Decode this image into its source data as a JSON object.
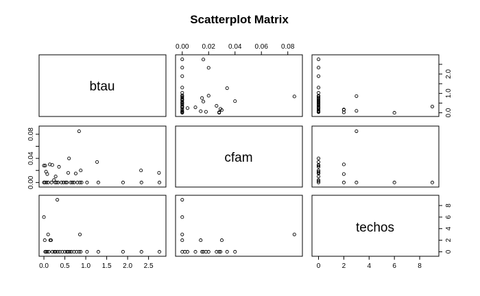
{
  "chart_data": {
    "type": "scatter",
    "title": "Scatterplot Matrix",
    "variables": [
      "btau",
      "cfam",
      "techos"
    ],
    "axes": {
      "btau": {
        "range": [
          -0.05,
          2.85
        ],
        "ticks": [
          0,
          0.5,
          1,
          1.5,
          2,
          2.5
        ],
        "tick_labels": [
          "0.0",
          "0.5",
          "1.0",
          "1.5",
          "2.0",
          "2.5"
        ]
      },
      "cfam": {
        "range": [
          -0.003,
          0.089
        ],
        "ticks": [
          0,
          0.02,
          0.04,
          0.06,
          0.08
        ],
        "tick_labels": [
          "0.00",
          "0.02",
          "0.04",
          "0.06",
          "0.08"
        ]
      },
      "techos": {
        "range": [
          -0.3,
          9.3
        ],
        "ticks": [
          0,
          2,
          4,
          6,
          8
        ],
        "tick_labels": [
          "0",
          "2",
          "4",
          "6",
          "8"
        ]
      }
    },
    "tick_label_sets": {
      "btau_y": [
        "0.0",
        "1.0",
        "2.0"
      ],
      "cfam_y": [
        "0.00",
        "0.04",
        "0.08"
      ],
      "techos_y": [
        "0",
        "2",
        "4",
        "6",
        "8"
      ]
    },
    "pairs": {
      "btau_cfam": [
        [
          0.0,
          0.028
        ],
        [
          0.03,
          0.028
        ],
        [
          0.05,
          0.018
        ],
        [
          0.08,
          0.014
        ],
        [
          0.1,
          0.0
        ],
        [
          0.14,
          0.03
        ],
        [
          0.18,
          0.0
        ],
        [
          0.2,
          0.029
        ],
        [
          0.24,
          0.004
        ],
        [
          0.27,
          0.0
        ],
        [
          0.28,
          0.01
        ],
        [
          0.3,
          0.0
        ],
        [
          0.34,
          0.0
        ],
        [
          0.36,
          0.026
        ],
        [
          0.42,
          0.0
        ],
        [
          0.47,
          0.0
        ],
        [
          0.52,
          0.0
        ],
        [
          0.55,
          0.0
        ],
        [
          0.58,
          0.016
        ],
        [
          0.6,
          0.04
        ],
        [
          0.64,
          0.0
        ],
        [
          0.68,
          0.0
        ],
        [
          0.72,
          0.0
        ],
        [
          0.76,
          0.015
        ],
        [
          0.8,
          0.0
        ],
        [
          0.84,
          0.085
        ],
        [
          0.86,
          0.0
        ],
        [
          0.88,
          0.02
        ],
        [
          0.9,
          0.0
        ],
        [
          1.03,
          0.0
        ],
        [
          1.27,
          0.034
        ],
        [
          1.3,
          0.0
        ],
        [
          1.89,
          0.0
        ],
        [
          2.32,
          0.02
        ],
        [
          2.33,
          0.0
        ],
        [
          2.75,
          0.016
        ],
        [
          2.76,
          0.0
        ],
        [
          0.0,
          0.0
        ],
        [
          0.02,
          0.0
        ],
        [
          0.06,
          0.0
        ]
      ],
      "btau_techos": [
        [
          0.0,
          6
        ],
        [
          0.02,
          2
        ],
        [
          0.03,
          0
        ],
        [
          0.05,
          0
        ],
        [
          0.08,
          0
        ],
        [
          0.1,
          3
        ],
        [
          0.12,
          0
        ],
        [
          0.15,
          2
        ],
        [
          0.17,
          2
        ],
        [
          0.2,
          0
        ],
        [
          0.25,
          0
        ],
        [
          0.28,
          0
        ],
        [
          0.32,
          9
        ],
        [
          0.33,
          0
        ],
        [
          0.38,
          0
        ],
        [
          0.44,
          0
        ],
        [
          0.5,
          0
        ],
        [
          0.55,
          0
        ],
        [
          0.58,
          0
        ],
        [
          0.62,
          0
        ],
        [
          0.66,
          0
        ],
        [
          0.72,
          0
        ],
        [
          0.78,
          0
        ],
        [
          0.84,
          0
        ],
        [
          0.86,
          3
        ],
        [
          0.88,
          0
        ],
        [
          1.03,
          0
        ],
        [
          1.3,
          0
        ],
        [
          1.89,
          0
        ],
        [
          2.33,
          0
        ],
        [
          2.76,
          0
        ]
      ],
      "cfam_techos": [
        [
          0.0,
          9
        ],
        [
          0.0,
          6
        ],
        [
          0.0,
          3
        ],
        [
          0.0,
          2
        ],
        [
          0.0,
          0
        ],
        [
          0.002,
          0
        ],
        [
          0.004,
          0
        ],
        [
          0.01,
          0
        ],
        [
          0.014,
          2
        ],
        [
          0.015,
          0
        ],
        [
          0.016,
          0
        ],
        [
          0.018,
          0
        ],
        [
          0.02,
          0
        ],
        [
          0.026,
          0
        ],
        [
          0.028,
          0
        ],
        [
          0.029,
          0
        ],
        [
          0.03,
          2
        ],
        [
          0.034,
          0
        ],
        [
          0.04,
          0
        ],
        [
          0.085,
          3
        ]
      ]
    }
  }
}
